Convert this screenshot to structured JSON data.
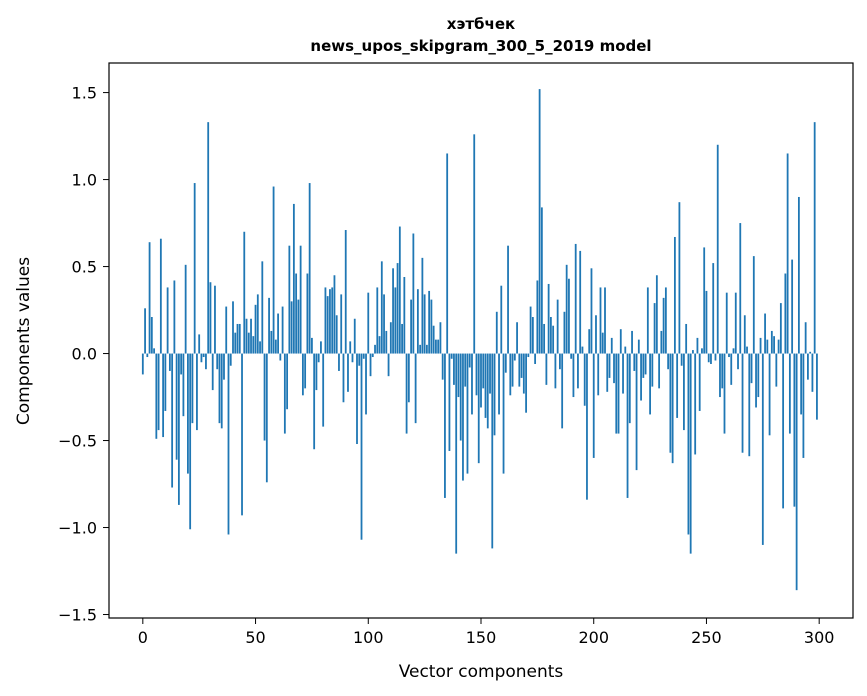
{
  "chart_data": {
    "type": "bar",
    "title": "хэтбчек",
    "subtitle": "news_upos_skipgram_300_5_2019 model",
    "xlabel": "Vector components",
    "ylabel": "Components values",
    "xlim": [
      -15,
      315
    ],
    "ylim": [
      -1.52,
      1.67
    ],
    "xticks": [
      0,
      50,
      100,
      150,
      200,
      250,
      300
    ],
    "xtick_labels": [
      "0",
      "50",
      "100",
      "150",
      "200",
      "250",
      "300"
    ],
    "yticks": [
      1.5,
      1.0,
      0.5,
      0.0,
      -0.5,
      -1.0,
      -1.5
    ],
    "ytick_labels": [
      "1.5",
      "1.0",
      "0.5",
      "0.0",
      "−0.5",
      "−1.0",
      "−1.5"
    ],
    "bar_color": "#1f77b4",
    "grid": false,
    "values": [
      -0.12,
      0.26,
      -0.02,
      0.64,
      0.21,
      0.03,
      -0.49,
      -0.44,
      0.66,
      -0.48,
      -0.33,
      0.38,
      -0.1,
      -0.77,
      0.42,
      -0.61,
      -0.87,
      -0.12,
      -0.36,
      0.51,
      -0.69,
      -1.01,
      -0.4,
      0.98,
      -0.44,
      0.11,
      -0.05,
      -0.02,
      -0.09,
      1.33,
      0.41,
      -0.21,
      0.39,
      -0.09,
      -0.4,
      -0.43,
      -0.15,
      0.27,
      -1.04,
      -0.07,
      0.3,
      0.12,
      0.17,
      0.17,
      -0.93,
      0.7,
      0.2,
      0.12,
      0.2,
      0.1,
      0.28,
      0.34,
      0.07,
      0.53,
      -0.5,
      -0.74,
      0.32,
      0.13,
      0.96,
      0.08,
      0.23,
      -0.04,
      0.27,
      -0.46,
      -0.32,
      0.62,
      0.3,
      0.86,
      0.46,
      0.31,
      0.62,
      -0.24,
      -0.2,
      0.46,
      0.98,
      0.09,
      -0.55,
      -0.21,
      -0.05,
      0.07,
      -0.42,
      0.38,
      0.33,
      0.37,
      0.38,
      0.45,
      0.22,
      -0.1,
      0.34,
      -0.28,
      0.71,
      -0.22,
      0.07,
      -0.05,
      0.2,
      -0.52,
      -0.07,
      -1.07,
      -0.03,
      -0.35,
      0.35,
      -0.13,
      -0.02,
      0.05,
      0.38,
      0.1,
      0.53,
      0.34,
      0.13,
      -0.13,
      0.18,
      0.49,
      0.38,
      0.52,
      0.73,
      0.17,
      0.44,
      -0.46,
      -0.28,
      0.31,
      0.69,
      -0.4,
      0.37,
      0.05,
      0.55,
      0.34,
      0.05,
      0.36,
      0.31,
      0.16,
      0.08,
      0.08,
      0.18,
      -0.15,
      -0.83,
      1.15,
      -0.56,
      -0.03,
      -0.18,
      -1.15,
      -0.25,
      -0.5,
      -0.73,
      -0.19,
      -0.69,
      -0.08,
      -0.35,
      1.26,
      -0.24,
      -0.63,
      -0.31,
      -0.2,
      -0.37,
      -0.43,
      -0.23,
      -1.12,
      -0.47,
      0.24,
      -0.35,
      0.39,
      -0.69,
      -0.11,
      0.62,
      -0.24,
      -0.19,
      -0.04,
      0.18,
      -0.19,
      -0.14,
      -0.23,
      -0.34,
      -0.02,
      0.27,
      0.21,
      -0.06,
      0.42,
      1.52,
      0.84,
      0.17,
      -0.18,
      0.4,
      0.21,
      0.16,
      -0.2,
      0.31,
      -0.09,
      -0.43,
      0.24,
      0.51,
      0.43,
      -0.03,
      -0.25,
      0.63,
      -0.2,
      0.59,
      0.04,
      -0.3,
      -0.84,
      0.14,
      0.49,
      -0.6,
      0.22,
      -0.24,
      0.38,
      0.12,
      0.38,
      -0.22,
      -0.14,
      0.09,
      -0.17,
      -0.46,
      -0.46,
      0.14,
      -0.23,
      0.04,
      -0.83,
      -0.4,
      0.13,
      -0.1,
      -0.67,
      0.08,
      -0.27,
      -0.14,
      -0.12,
      0.38,
      -0.35,
      -0.19,
      0.29,
      0.45,
      -0.2,
      0.13,
      0.32,
      0.38,
      -0.09,
      -0.57,
      -0.63,
      0.67,
      -0.37,
      0.87,
      -0.07,
      -0.44,
      0.17,
      -1.04,
      -1.15,
      0.02,
      -0.58,
      0.09,
      -0.33,
      0.03,
      0.61,
      0.36,
      -0.05,
      -0.06,
      0.52,
      -0.04,
      1.2,
      -0.25,
      -0.2,
      -0.46,
      0.35,
      -0.02,
      -0.18,
      0.03,
      0.35,
      -0.09,
      0.75,
      -0.57,
      0.22,
      0.04,
      -0.59,
      -0.17,
      0.56,
      -0.31,
      -0.25,
      0.09,
      -1.1,
      0.23,
      0.08,
      -0.47,
      0.13,
      0.1,
      -0.19,
      0.08,
      0.29,
      -0.89,
      0.46,
      1.15,
      -0.46,
      0.54,
      -0.88,
      -1.36,
      0.9,
      -0.35,
      -0.6,
      0.18,
      -0.15,
      0.01,
      -0.22,
      1.33,
      -0.38
    ]
  }
}
